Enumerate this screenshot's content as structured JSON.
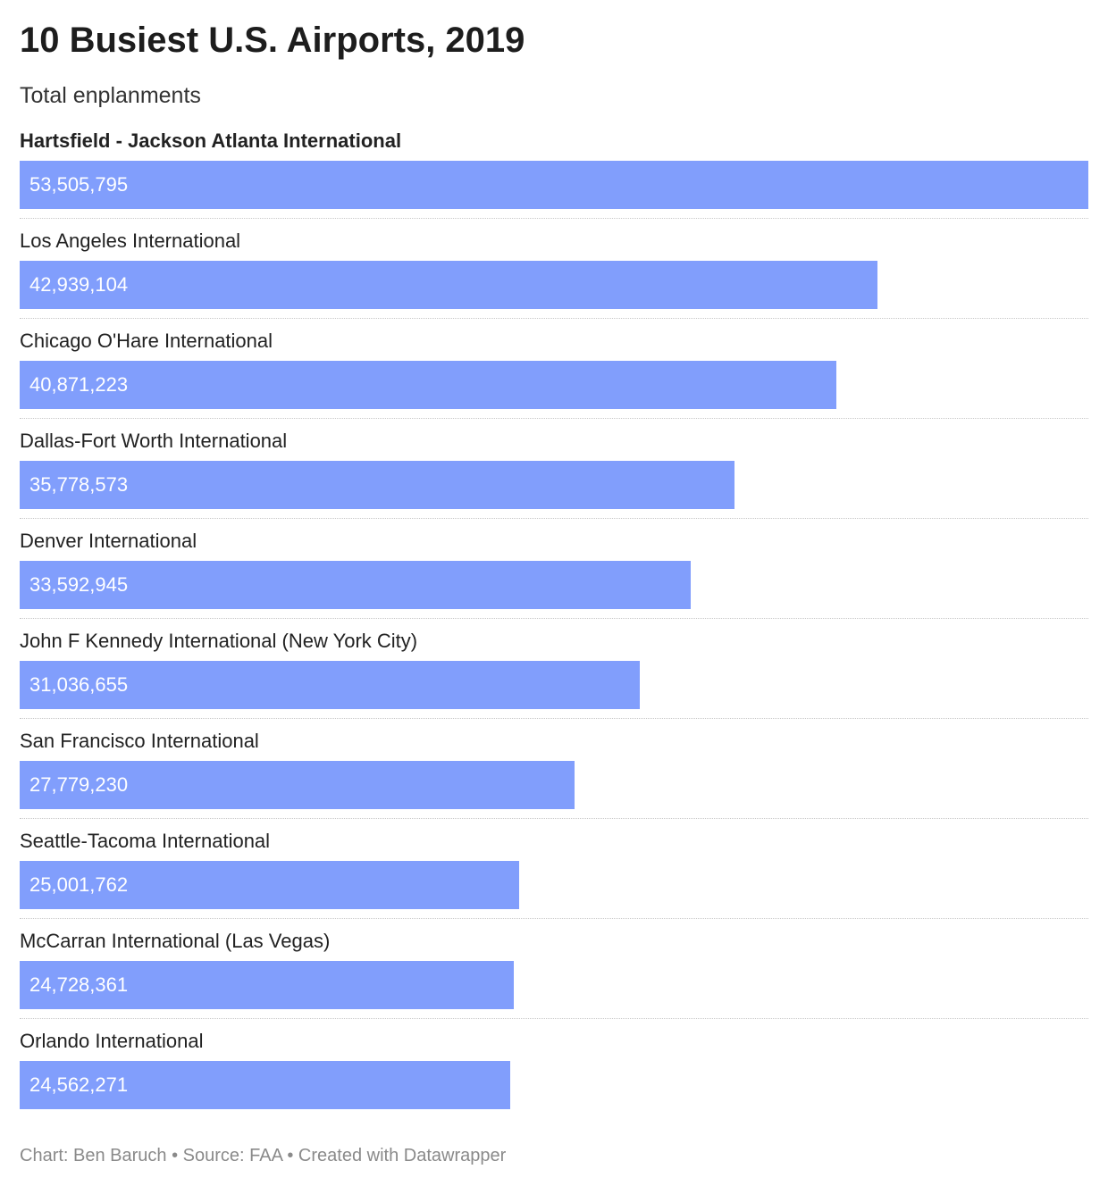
{
  "chart_data": {
    "type": "bar",
    "orientation": "horizontal",
    "title": "10 Busiest U.S. Airports, 2019",
    "subtitle": "Total enplanments",
    "categories": [
      "Hartsfield - Jackson Atlanta International",
      "Los Angeles International",
      "Chicago O'Hare International",
      "Dallas-Fort Worth International",
      "Denver International",
      "John F Kennedy International (New York City)",
      "San Francisco International",
      "Seattle-Tacoma International",
      "McCarran International (Las Vegas)",
      "Orlando International"
    ],
    "values": [
      53505795,
      42939104,
      40871223,
      35778573,
      33592945,
      31036655,
      27779230,
      25001762,
      24728361,
      24562271
    ],
    "value_labels": [
      "53,505,795",
      "42,939,104",
      "40,871,223",
      "35,778,573",
      "33,592,945",
      "31,036,655",
      "27,779,230",
      "25,001,762",
      "24,728,361",
      "24,562,271"
    ],
    "highlighted_category": "Hartsfield - Jackson Atlanta International",
    "xlim": [
      0,
      53505795
    ],
    "bar_color": "#819efc",
    "value_label_color": "#ffffff",
    "grid": false,
    "legend": "none"
  },
  "footer": {
    "credit": "Chart: Ben Baruch • Source: FAA • Created with Datawrapper"
  }
}
